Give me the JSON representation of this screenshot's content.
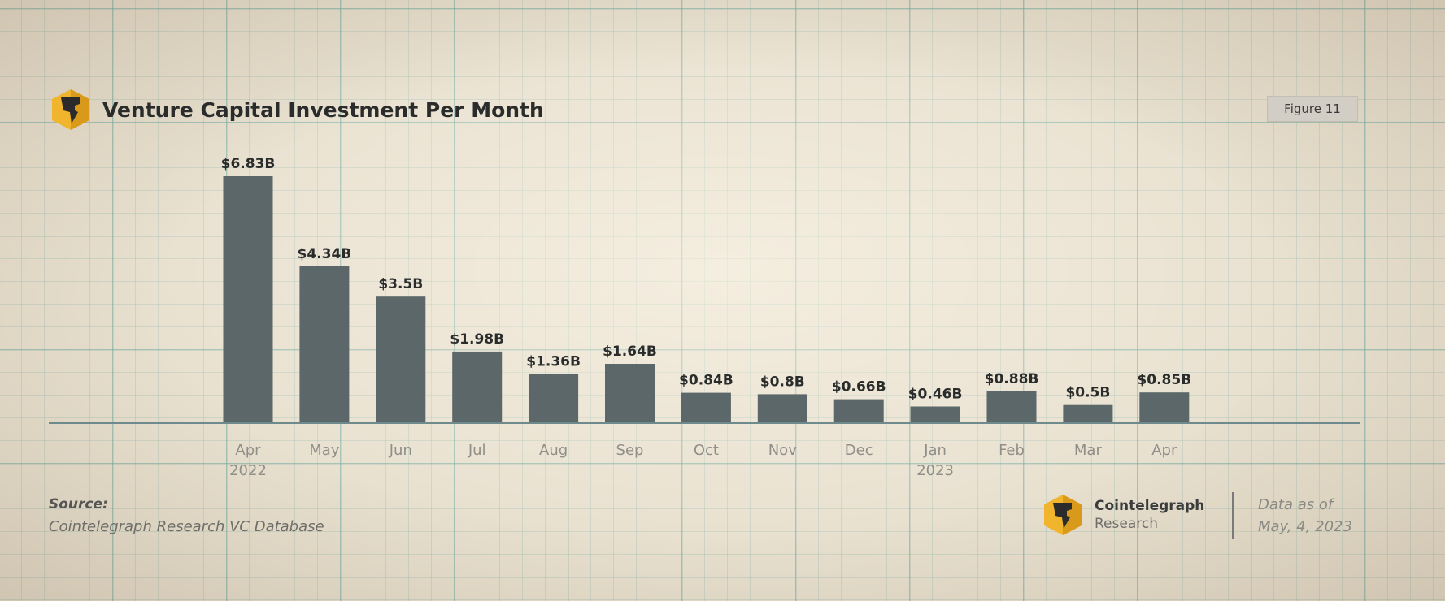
{
  "header": {
    "title": "Venture Capital Investment Per Month",
    "figure_badge": "Figure 11",
    "logo_icon": "cointelegraph-logo-icon"
  },
  "colors": {
    "bar": "#5b6768",
    "baseline": "#6f8a8d",
    "logo_gold": "#f1b52d",
    "logo_dark": "#2b2b2b"
  },
  "chart_data": {
    "type": "bar",
    "title": "Venture Capital Investment Per Month",
    "xlabel": "",
    "ylabel": "",
    "unit": "billion USD",
    "grid": false,
    "ylim": [
      0,
      6.83
    ],
    "categories": [
      "Apr",
      "May",
      "Jun",
      "Jul",
      "Aug",
      "Sep",
      "Oct",
      "Nov",
      "Dec",
      "Jan",
      "Feb",
      "Mar",
      "Apr"
    ],
    "year_labels": [
      "2022",
      "",
      "",
      "",
      "",
      "",
      "",
      "",
      "",
      "2023",
      "",
      "",
      ""
    ],
    "values": [
      6.83,
      4.34,
      3.5,
      1.98,
      1.36,
      1.64,
      0.84,
      0.8,
      0.66,
      0.46,
      0.88,
      0.5,
      0.85
    ],
    "value_labels": [
      "$6.83B",
      "$4.34B",
      "$3.5B",
      "$1.98B",
      "$1.36B",
      "$1.64B",
      "$0.84B",
      "$0.8B",
      "$0.66B",
      "$0.46B",
      "$0.88B",
      "$0.5B",
      "$0.85B"
    ]
  },
  "footer": {
    "source_title": "Source:",
    "source_text": "Cointelegraph Research VC Database",
    "brand_name": "Cointelegraph",
    "brand_sub": "Research",
    "asof_line1": "Data as of",
    "asof_line2": "May, 4, 2023"
  }
}
